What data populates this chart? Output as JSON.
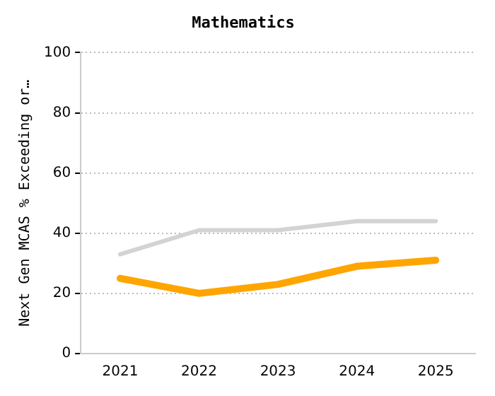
{
  "chart_data": {
    "type": "line",
    "title": "Mathematics",
    "ylabel": "Next Gen MCAS % Exceeding or…",
    "categories": [
      "2021",
      "2022",
      "2023",
      "2024",
      "2025"
    ],
    "series": [
      {
        "color": "#d3d3d3",
        "values": [
          33,
          41,
          41,
          44,
          44
        ]
      },
      {
        "color": "#ffa500",
        "values": [
          25,
          20,
          23,
          29,
          31
        ]
      }
    ],
    "ylim": [
      0,
      100
    ],
    "yticks": [
      0,
      20,
      40,
      60,
      80,
      100
    ],
    "grid": "y",
    "legend": false,
    "marker": "none",
    "line_style": "solid"
  }
}
